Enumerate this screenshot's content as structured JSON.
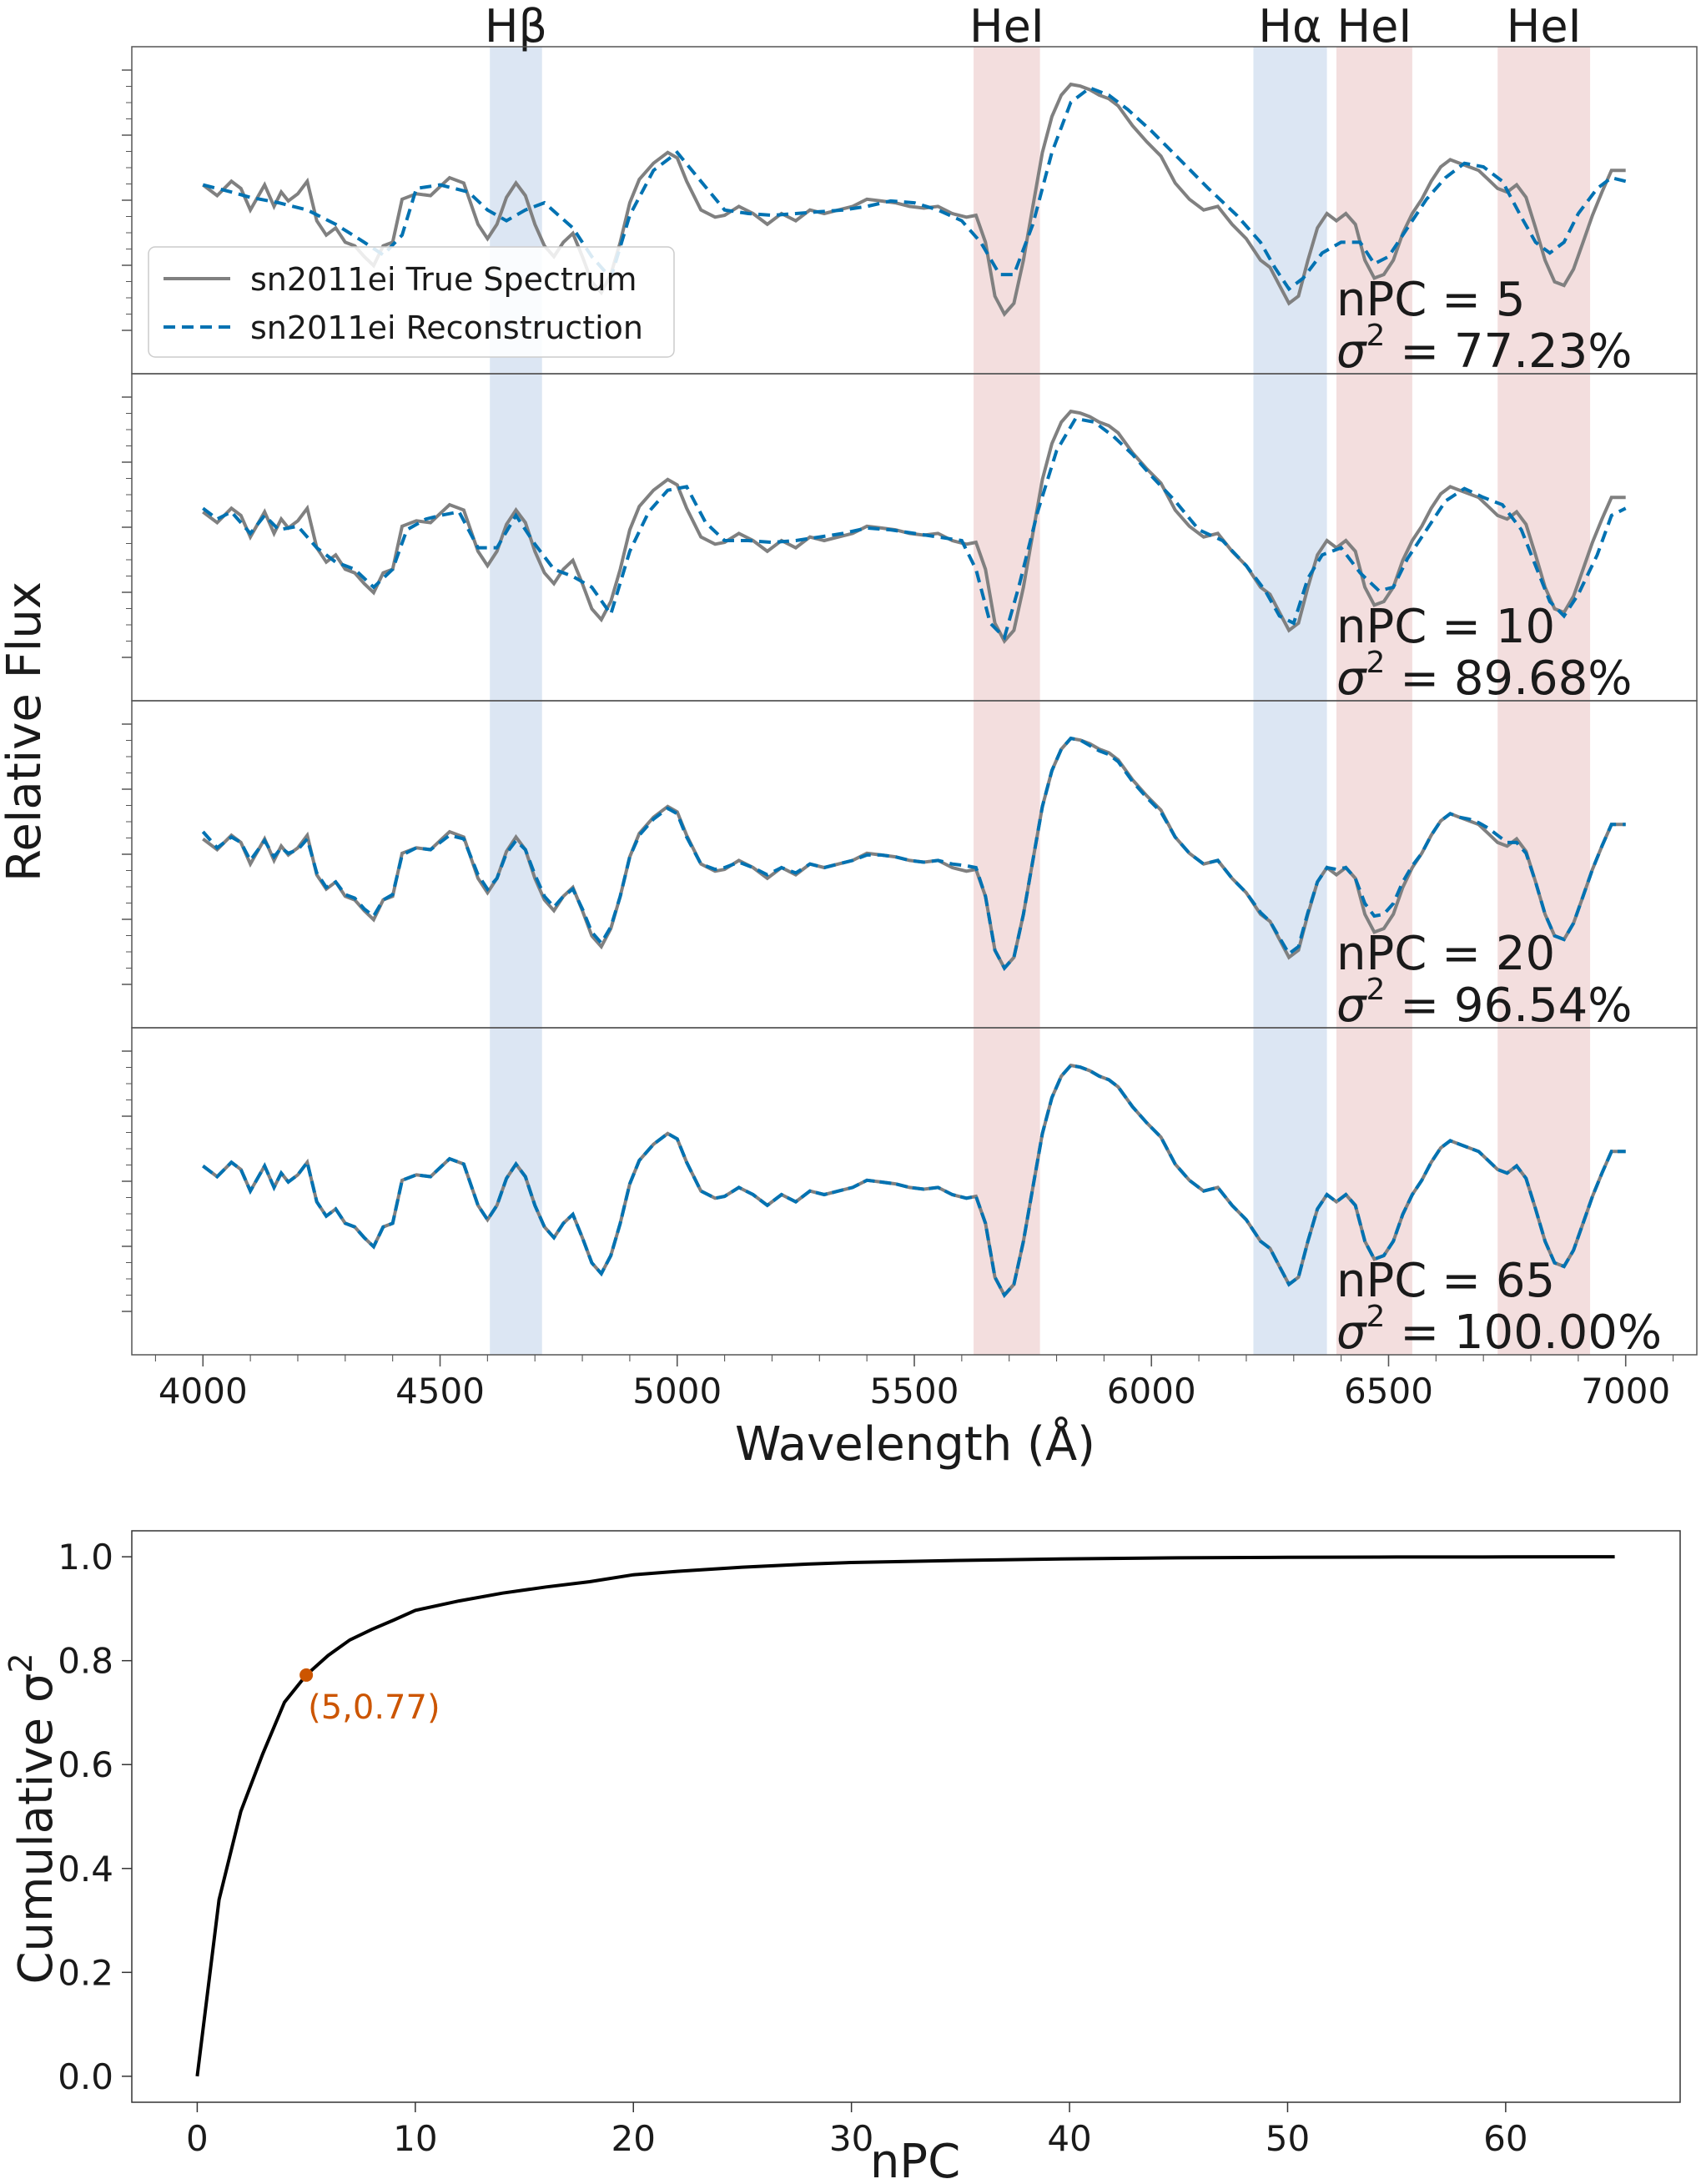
{
  "figure": {
    "top_xlabel": "Wavelength (Å)",
    "top_ylabel": "Relative Flux",
    "bottom_xlabel": "nPC",
    "bottom_ylabel_text": "Cumulative σ",
    "bottom_ylabel_sup": "2"
  },
  "chart_data": [
    {
      "type": "line",
      "panel": "spectra",
      "xlabel": "Wavelength (Å)",
      "ylabel": "Relative Flux",
      "xlim": [
        3850,
        7150
      ],
      "xticks": [
        4000,
        4500,
        5000,
        5500,
        6000,
        6500,
        7000
      ],
      "y_ticklabels_shown": false,
      "legend": {
        "placement": "upper-left of first panel",
        "entries": [
          {
            "label": "sn2011ei True Spectrum",
            "color": "#808080",
            "style": "solid"
          },
          {
            "label": "sn2011ei Reconstruction",
            "color": "#0072b2",
            "style": "dashed"
          }
        ]
      },
      "line_regions": [
        {
          "label": "Hβ",
          "x0": 4605,
          "x1": 4715,
          "color": "#dce6f3"
        },
        {
          "label": "HeI",
          "x0": 5625,
          "x1": 5765,
          "color": "#f3dede"
        },
        {
          "label": "Hα",
          "x0": 6215,
          "x1": 6370,
          "color": "#dce6f3"
        },
        {
          "label": "HeI",
          "x0": 6390,
          "x1": 6550,
          "color": "#f3dede"
        },
        {
          "label": "HeI",
          "x0": 6730,
          "x1": 6925,
          "color": "#f3dede"
        }
      ],
      "true_spectrum": {
        "name": "sn2011ei True Spectrum",
        "x": [
          4000,
          4030,
          4060,
          4080,
          4100,
          4130,
          4150,
          4165,
          4180,
          4200,
          4220,
          4240,
          4260,
          4280,
          4300,
          4320,
          4340,
          4360,
          4380,
          4400,
          4420,
          4450,
          4480,
          4500,
          4520,
          4550,
          4580,
          4600,
          4620,
          4640,
          4660,
          4680,
          4700,
          4720,
          4740,
          4760,
          4780,
          4800,
          4820,
          4840,
          4860,
          4880,
          4900,
          4920,
          4950,
          4980,
          5000,
          5020,
          5050,
          5080,
          5100,
          5130,
          5160,
          5190,
          5220,
          5250,
          5280,
          5310,
          5340,
          5370,
          5400,
          5430,
          5460,
          5490,
          5520,
          5550,
          5580,
          5610,
          5630,
          5650,
          5670,
          5690,
          5710,
          5730,
          5750,
          5770,
          5790,
          5810,
          5830,
          5850,
          5870,
          5890,
          5910,
          5930,
          5960,
          5990,
          6020,
          6050,
          6080,
          6110,
          6140,
          6170,
          6200,
          6230,
          6250,
          6270,
          6290,
          6310,
          6330,
          6350,
          6370,
          6390,
          6410,
          6430,
          6450,
          6470,
          6490,
          6510,
          6530,
          6550,
          6570,
          6590,
          6610,
          6630,
          6650,
          6670,
          6690,
          6710,
          6730,
          6750,
          6770,
          6790,
          6810,
          6830,
          6850,
          6870,
          6890,
          6910,
          6930,
          6950,
          6970,
          7000
        ],
        "y": [
          0.72,
          0.66,
          0.74,
          0.7,
          0.58,
          0.72,
          0.6,
          0.68,
          0.63,
          0.67,
          0.74,
          0.52,
          0.44,
          0.48,
          0.4,
          0.38,
          0.32,
          0.27,
          0.38,
          0.4,
          0.64,
          0.67,
          0.66,
          0.71,
          0.76,
          0.73,
          0.5,
          0.42,
          0.5,
          0.65,
          0.73,
          0.66,
          0.5,
          0.38,
          0.32,
          0.4,
          0.45,
          0.32,
          0.18,
          0.12,
          0.22,
          0.4,
          0.62,
          0.75,
          0.84,
          0.9,
          0.87,
          0.74,
          0.58,
          0.54,
          0.55,
          0.6,
          0.56,
          0.5,
          0.56,
          0.52,
          0.58,
          0.56,
          0.58,
          0.6,
          0.64,
          0.63,
          0.62,
          0.6,
          0.59,
          0.6,
          0.56,
          0.54,
          0.55,
          0.4,
          0.1,
          0.0,
          0.06,
          0.3,
          0.6,
          0.9,
          1.1,
          1.22,
          1.28,
          1.27,
          1.25,
          1.22,
          1.2,
          1.16,
          1.05,
          0.96,
          0.88,
          0.73,
          0.64,
          0.58,
          0.6,
          0.5,
          0.42,
          0.3,
          0.26,
          0.16,
          0.06,
          0.1,
          0.3,
          0.48,
          0.56,
          0.52,
          0.56,
          0.5,
          0.3,
          0.2,
          0.22,
          0.3,
          0.45,
          0.56,
          0.64,
          0.74,
          0.82,
          0.86,
          0.84,
          0.82,
          0.8,
          0.75,
          0.7,
          0.68,
          0.72,
          0.65,
          0.48,
          0.3,
          0.18,
          0.16,
          0.25,
          0.4,
          0.55,
          0.68,
          0.8,
          0.8
        ]
      },
      "panels": [
        {
          "npc_text": "nPC = 5",
          "variance_text": "= 77.23%",
          "reconstruction": {
            "x": [
              4000,
              4060,
              4100,
              4160,
              4220,
              4280,
              4340,
              4380,
              4420,
              4450,
              4500,
              4560,
              4600,
              4640,
              4680,
              4720,
              4780,
              4820,
              4860,
              4900,
              4950,
              5000,
              5050,
              5100,
              5150,
              5200,
              5250,
              5300,
              5350,
              5400,
              5450,
              5500,
              5550,
              5600,
              5640,
              5680,
              5710,
              5750,
              5790,
              5830,
              5870,
              5910,
              5950,
              6000,
              6060,
              6120,
              6180,
              6230,
              6260,
              6290,
              6320,
              6360,
              6400,
              6440,
              6470,
              6500,
              6540,
              6580,
              6620,
              6660,
              6700,
              6740,
              6780,
              6810,
              6840,
              6870,
              6900,
              6940,
              6970,
              7000
            ],
            "y": [
              0.72,
              0.68,
              0.65,
              0.62,
              0.58,
              0.5,
              0.4,
              0.33,
              0.44,
              0.7,
              0.72,
              0.68,
              0.58,
              0.52,
              0.58,
              0.62,
              0.48,
              0.32,
              0.2,
              0.55,
              0.8,
              0.9,
              0.74,
              0.58,
              0.56,
              0.55,
              0.56,
              0.57,
              0.58,
              0.6,
              0.63,
              0.62,
              0.58,
              0.52,
              0.4,
              0.22,
              0.22,
              0.5,
              0.9,
              1.18,
              1.26,
              1.22,
              1.14,
              1.02,
              0.86,
              0.7,
              0.55,
              0.4,
              0.26,
              0.14,
              0.2,
              0.34,
              0.4,
              0.4,
              0.28,
              0.32,
              0.48,
              0.64,
              0.76,
              0.84,
              0.82,
              0.74,
              0.54,
              0.4,
              0.34,
              0.4,
              0.56,
              0.7,
              0.76,
              0.74
            ]
          }
        },
        {
          "npc_text": "nPC = 10",
          "variance_text": "= 89.68%",
          "reconstruction": {
            "x": [
              4000,
              4030,
              4060,
              4100,
              4130,
              4160,
              4200,
              4240,
              4280,
              4320,
              4360,
              4400,
              4430,
              4470,
              4500,
              4540,
              4580,
              4620,
              4660,
              4700,
              4740,
              4780,
              4820,
              4860,
              4900,
              4940,
              4980,
              5020,
              5060,
              5100,
              5150,
              5200,
              5250,
              5300,
              5350,
              5400,
              5450,
              5500,
              5550,
              5600,
              5630,
              5660,
              5690,
              5720,
              5760,
              5800,
              5840,
              5880,
              5920,
              5960,
              6000,
              6050,
              6100,
              6150,
              6200,
              6240,
              6270,
              6300,
              6330,
              6360,
              6400,
              6440,
              6480,
              6510,
              6540,
              6580,
              6620,
              6660,
              6700,
              6740,
              6780,
              6810,
              6840,
              6870,
              6900,
              6940,
              6970,
              7000
            ],
            "y": [
              0.74,
              0.68,
              0.72,
              0.6,
              0.7,
              0.62,
              0.64,
              0.52,
              0.44,
              0.4,
              0.3,
              0.4,
              0.62,
              0.68,
              0.7,
              0.72,
              0.52,
              0.52,
              0.7,
              0.54,
              0.4,
              0.36,
              0.3,
              0.15,
              0.5,
              0.72,
              0.84,
              0.86,
              0.66,
              0.56,
              0.56,
              0.55,
              0.56,
              0.58,
              0.6,
              0.63,
              0.62,
              0.6,
              0.58,
              0.56,
              0.4,
              0.1,
              0.02,
              0.3,
              0.72,
              1.06,
              1.24,
              1.22,
              1.14,
              1.04,
              0.92,
              0.78,
              0.62,
              0.56,
              0.42,
              0.28,
              0.14,
              0.1,
              0.35,
              0.48,
              0.52,
              0.38,
              0.28,
              0.3,
              0.46,
              0.62,
              0.78,
              0.85,
              0.8,
              0.76,
              0.62,
              0.42,
              0.22,
              0.14,
              0.26,
              0.48,
              0.7,
              0.74
            ]
          }
        },
        {
          "npc_text": "nPC = 20",
          "variance_text": "= 96.54%",
          "reconstruction": {
            "x": [
              4000,
              4030,
              4060,
              4080,
              4100,
              4130,
              4150,
              4165,
              4180,
              4200,
              4220,
              4240,
              4260,
              4280,
              4300,
              4320,
              4340,
              4360,
              4380,
              4400,
              4420,
              4450,
              4480,
              4500,
              4520,
              4550,
              4580,
              4600,
              4620,
              4640,
              4660,
              4680,
              4700,
              4720,
              4740,
              4760,
              4780,
              4800,
              4820,
              4840,
              4860,
              4880,
              4900,
              4920,
              4950,
              4980,
              5000,
              5020,
              5050,
              5080,
              5100,
              5130,
              5160,
              5190,
              5220,
              5250,
              5280,
              5310,
              5340,
              5370,
              5400,
              5430,
              5460,
              5490,
              5520,
              5550,
              5580,
              5610,
              5630,
              5650,
              5670,
              5690,
              5710,
              5730,
              5750,
              5770,
              5790,
              5810,
              5830,
              5850,
              5870,
              5890,
              5910,
              5930,
              5960,
              5990,
              6020,
              6050,
              6080,
              6110,
              6140,
              6170,
              6200,
              6230,
              6250,
              6270,
              6290,
              6310,
              6330,
              6350,
              6370,
              6390,
              6410,
              6430,
              6450,
              6470,
              6490,
              6510,
              6530,
              6550,
              6570,
              6590,
              6610,
              6630,
              6650,
              6670,
              6690,
              6710,
              6730,
              6750,
              6770,
              6790,
              6810,
              6830,
              6850,
              6870,
              6890,
              6910,
              6930,
              6950,
              6970,
              7000
            ],
            "y": [
              0.76,
              0.67,
              0.73,
              0.7,
              0.6,
              0.71,
              0.62,
              0.67,
              0.64,
              0.66,
              0.72,
              0.53,
              0.45,
              0.48,
              0.41,
              0.39,
              0.33,
              0.29,
              0.38,
              0.41,
              0.63,
              0.67,
              0.66,
              0.7,
              0.74,
              0.72,
              0.52,
              0.44,
              0.5,
              0.64,
              0.71,
              0.66,
              0.52,
              0.4,
              0.34,
              0.4,
              0.44,
              0.33,
              0.2,
              0.14,
              0.23,
              0.4,
              0.62,
              0.74,
              0.83,
              0.89,
              0.86,
              0.73,
              0.58,
              0.55,
              0.56,
              0.59,
              0.56,
              0.52,
              0.56,
              0.53,
              0.58,
              0.56,
              0.58,
              0.6,
              0.63,
              0.63,
              0.62,
              0.6,
              0.59,
              0.6,
              0.58,
              0.57,
              0.56,
              0.4,
              0.1,
              0.0,
              0.06,
              0.3,
              0.6,
              0.9,
              1.1,
              1.22,
              1.28,
              1.27,
              1.24,
              1.21,
              1.19,
              1.15,
              1.04,
              0.95,
              0.87,
              0.73,
              0.64,
              0.58,
              0.6,
              0.5,
              0.42,
              0.31,
              0.26,
              0.17,
              0.08,
              0.12,
              0.31,
              0.48,
              0.56,
              0.55,
              0.56,
              0.5,
              0.36,
              0.29,
              0.3,
              0.36,
              0.48,
              0.57,
              0.64,
              0.74,
              0.82,
              0.86,
              0.84,
              0.83,
              0.81,
              0.78,
              0.74,
              0.7,
              0.7,
              0.64,
              0.48,
              0.3,
              0.18,
              0.16,
              0.25,
              0.4,
              0.55,
              0.68,
              0.8,
              0.8
            ]
          }
        },
        {
          "npc_text": "nPC = 65",
          "variance_text": "= 100.00%",
          "reconstruction": "identical to true_spectrum"
        }
      ]
    },
    {
      "type": "line",
      "panel": "cumulative-variance",
      "xlabel": "nPC",
      "ylabel": "Cumulative σ2",
      "xlim": [
        -3,
        68
      ],
      "ylim": [
        -0.05,
        1.05
      ],
      "xticks": [
        0,
        10,
        20,
        30,
        40,
        50,
        60
      ],
      "yticks": [
        0.0,
        0.2,
        0.4,
        0.6,
        0.8,
        1.0
      ],
      "ytick_labels": [
        "0.0",
        "0.2",
        "0.4",
        "0.6",
        "0.8",
        "1.0"
      ],
      "series": [
        {
          "color": "#000000",
          "x": [
            0,
            1,
            2,
            3,
            4,
            5,
            6,
            7,
            8,
            9,
            10,
            12,
            14,
            16,
            18,
            20,
            22,
            25,
            28,
            30,
            35,
            40,
            45,
            50,
            55,
            60,
            65
          ],
          "y": [
            0.0,
            0.34,
            0.51,
            0.62,
            0.72,
            0.7723,
            0.81,
            0.84,
            0.86,
            0.878,
            0.8968,
            0.915,
            0.93,
            0.942,
            0.952,
            0.9654,
            0.972,
            0.98,
            0.986,
            0.989,
            0.993,
            0.996,
            0.998,
            0.999,
            0.9995,
            0.9998,
            1.0
          ]
        }
      ],
      "annotation": {
        "x": 5,
        "y": 0.77,
        "label": "(5,0.77)",
        "color": "#cc5500"
      }
    }
  ]
}
